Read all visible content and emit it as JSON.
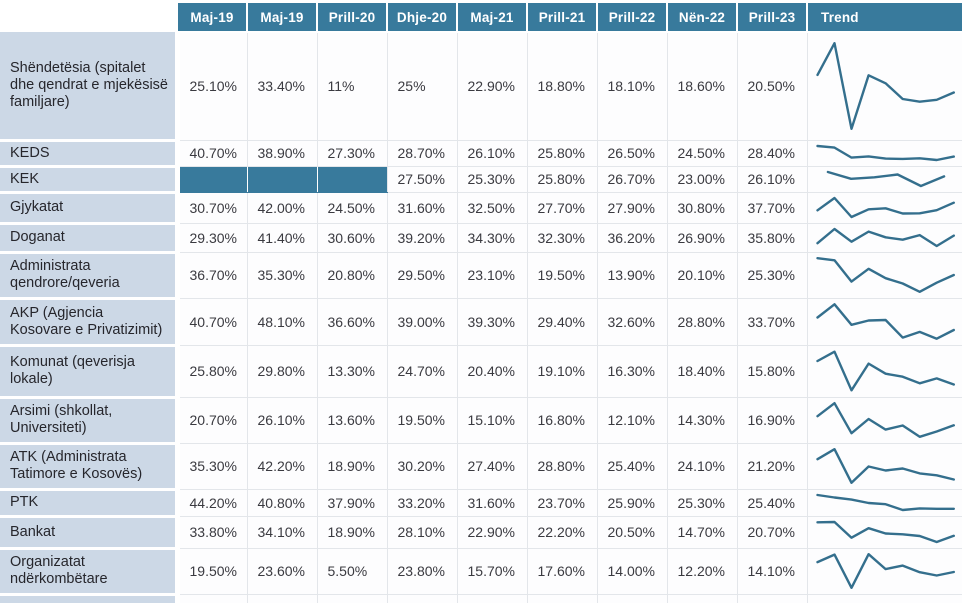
{
  "header": {
    "corner_label": "",
    "trend_label": "Trend"
  },
  "colors": {
    "header_bg": "#387a9c",
    "row_label_bg": "#ccd8e6",
    "filled_cell_bg": "#387a9c",
    "sparkline": "#346f8d",
    "grid_line": "#e3e6ea",
    "header_text": "#ffffff",
    "value_text": "#3a3a40"
  },
  "chart_data": {
    "type": "table",
    "title": "",
    "columns": [
      "Maj-19",
      "Maj-19",
      "Prill-20",
      "Dhje-20",
      "Maj-21",
      "Prill-21",
      "Prill-22",
      "Nën-22",
      "Prill-23",
      "Trend"
    ],
    "trend_note": "sparkline per row, scaled to each row's own min/max",
    "rows": [
      {
        "label": "Shëndetësia (spitalet dhe qendrat e mjekësisë familjare)",
        "values": [
          "25.10%",
          "33.40%",
          "11%",
          "25%",
          "22.90%",
          "18.80%",
          "18.10%",
          "18.60%",
          "20.50%"
        ],
        "numeric": [
          25.1,
          33.4,
          11,
          25,
          22.9,
          18.8,
          18.1,
          18.6,
          20.5
        ]
      },
      {
        "label": "KEDS",
        "values": [
          "40.70%",
          "38.90%",
          "27.30%",
          "28.70%",
          "26.10%",
          "25.80%",
          "26.50%",
          "24.50%",
          "28.40%"
        ],
        "numeric": [
          40.7,
          38.9,
          27.3,
          28.7,
          26.1,
          25.8,
          26.5,
          24.5,
          28.4
        ]
      },
      {
        "label": "KEK",
        "values": [
          null,
          null,
          null,
          "27.50%",
          "25.30%",
          "25.80%",
          "26.70%",
          "23.00%",
          "26.10%"
        ],
        "numeric": [
          null,
          null,
          null,
          27.5,
          25.3,
          25.8,
          26.7,
          23.0,
          26.1
        ]
      },
      {
        "label": "Gjykatat",
        "values": [
          "30.70%",
          "42.00%",
          "24.50%",
          "31.60%",
          "32.50%",
          "27.70%",
          "27.90%",
          "30.80%",
          "37.70%"
        ],
        "numeric": [
          30.7,
          42.0,
          24.5,
          31.6,
          32.5,
          27.7,
          27.9,
          30.8,
          37.7
        ]
      },
      {
        "label": "Doganat",
        "values": [
          "29.30%",
          "41.40%",
          "30.60%",
          "39.20%",
          "34.30%",
          "32.30%",
          "36.20%",
          "26.90%",
          "35.80%"
        ],
        "numeric": [
          29.3,
          41.4,
          30.6,
          39.2,
          34.3,
          32.3,
          36.2,
          26.9,
          35.8
        ]
      },
      {
        "label": "Administrata qendrore/qeveria",
        "values": [
          "36.70%",
          "35.30%",
          "20.80%",
          "29.50%",
          "23.10%",
          "19.50%",
          "13.90%",
          "20.10%",
          "25.30%"
        ],
        "numeric": [
          36.7,
          35.3,
          20.8,
          29.5,
          23.1,
          19.5,
          13.9,
          20.1,
          25.3
        ]
      },
      {
        "label": "AKP (Agjencia Kosovare e Privatizimit)",
        "values": [
          "40.70%",
          "48.10%",
          "36.60%",
          "39.00%",
          "39.30%",
          "29.40%",
          "32.60%",
          "28.80%",
          "33.70%"
        ],
        "numeric": [
          40.7,
          48.1,
          36.6,
          39.0,
          39.3,
          29.4,
          32.6,
          28.8,
          33.7
        ]
      },
      {
        "label": "Komunat (qeverisja lokale)",
        "values": [
          "25.80%",
          "29.80%",
          "13.30%",
          "24.70%",
          "20.40%",
          "19.10%",
          "16.30%",
          "18.40%",
          "15.80%"
        ],
        "numeric": [
          25.8,
          29.8,
          13.3,
          24.7,
          20.4,
          19.1,
          16.3,
          18.4,
          15.8
        ]
      },
      {
        "label": "Arsimi (shkollat, Universiteti)",
        "values": [
          "20.70%",
          "26.10%",
          "13.60%",
          "19.50%",
          "15.10%",
          "16.80%",
          "12.10%",
          "14.30%",
          "16.90%"
        ],
        "numeric": [
          20.7,
          26.1,
          13.6,
          19.5,
          15.1,
          16.8,
          12.1,
          14.3,
          16.9
        ]
      },
      {
        "label": "ATK (Administrata Tatimore e Kosovës)",
        "values": [
          "35.30%",
          "42.20%",
          "18.90%",
          "30.20%",
          "27.40%",
          "28.80%",
          "25.40%",
          "24.10%",
          "21.20%"
        ],
        "numeric": [
          35.3,
          42.2,
          18.9,
          30.2,
          27.4,
          28.8,
          25.4,
          24.1,
          21.2
        ]
      },
      {
        "label": "PTK",
        "values": [
          "44.20%",
          "40.80%",
          "37.90%",
          "33.20%",
          "31.60%",
          "23.70%",
          "25.90%",
          "25.30%",
          "25.40%"
        ],
        "numeric": [
          44.2,
          40.8,
          37.9,
          33.2,
          31.6,
          23.7,
          25.9,
          25.3,
          25.4
        ]
      },
      {
        "label": "Bankat",
        "values": [
          "33.80%",
          "34.10%",
          "18.90%",
          "28.10%",
          "22.90%",
          "22.20%",
          "20.50%",
          "14.70%",
          "20.70%"
        ],
        "numeric": [
          33.8,
          34.1,
          18.9,
          28.1,
          22.9,
          22.2,
          20.5,
          14.7,
          20.7
        ]
      },
      {
        "label": "Organizatat ndërkombëtare",
        "values": [
          "19.50%",
          "23.60%",
          "5.50%",
          "23.80%",
          "15.70%",
          "17.60%",
          "14.00%",
          "12.20%",
          "14.10%"
        ],
        "numeric": [
          19.5,
          23.6,
          5.5,
          23.8,
          15.7,
          17.6,
          14.0,
          12.2,
          14.1
        ]
      }
    ]
  }
}
